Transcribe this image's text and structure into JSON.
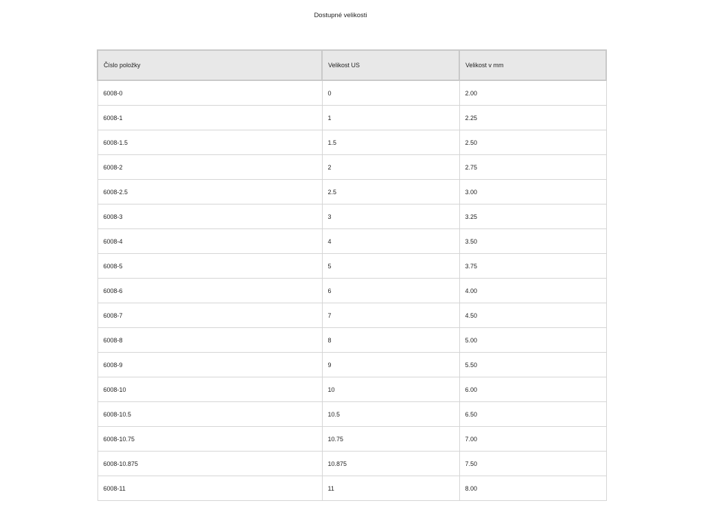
{
  "title": "Dostupné velikosti",
  "table": {
    "headers": [
      "Číslo položky",
      "Velikost US",
      "Velikost v mm"
    ],
    "rows": [
      [
        "6008-0",
        "0",
        "2.00"
      ],
      [
        "6008-1",
        "1",
        "2.25"
      ],
      [
        "6008-1.5",
        "1.5",
        "2.50"
      ],
      [
        "6008-2",
        "2",
        "2.75"
      ],
      [
        "6008-2.5",
        "2.5",
        "3.00"
      ],
      [
        "6008-3",
        "3",
        "3.25"
      ],
      [
        "6008-4",
        "4",
        "3.50"
      ],
      [
        "6008-5",
        "5",
        "3.75"
      ],
      [
        "6008-6",
        "6",
        "4.00"
      ],
      [
        "6008-7",
        "7",
        "4.50"
      ],
      [
        "6008-8",
        "8",
        "5.00"
      ],
      [
        "6008-9",
        "9",
        "5.50"
      ],
      [
        "6008-10",
        "10",
        "6.00"
      ],
      [
        "6008-10.5",
        "10.5",
        "6.50"
      ],
      [
        "6008-10.75",
        "10.75",
        "7.00"
      ],
      [
        "6008-10.875",
        "10.875",
        "7.50"
      ],
      [
        "6008-11",
        "11",
        "8.00"
      ]
    ]
  }
}
